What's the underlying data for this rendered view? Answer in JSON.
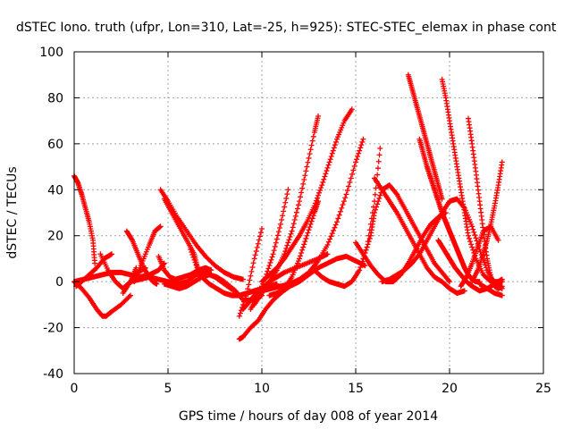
{
  "chart_data": {
    "type": "scatter",
    "title": "dSTEC Iono. truth (ufpr, Lon=310, Lat=-25, h=925): STEC-STEC_elemax in phase cont",
    "xlabel": "GPS time / hours of day 008 of year 2014",
    "ylabel": "dSTEC  / TECUs",
    "xlim": [
      0,
      25
    ],
    "ylim": [
      -40,
      100
    ],
    "xticks": [
      0,
      5,
      10,
      15,
      20,
      25
    ],
    "yticks": [
      -40,
      -20,
      0,
      20,
      40,
      60,
      80,
      100
    ],
    "grid": true,
    "grid_style": "dotted",
    "marker": "+",
    "color": "#ff0000",
    "series": [
      {
        "x": [
          0.0,
          0.2,
          0.4,
          0.6,
          0.8,
          1.0,
          1.1
        ],
        "y": [
          46,
          43,
          38,
          32,
          26,
          18,
          8
        ]
      },
      {
        "x": [
          0.0,
          0.4,
          0.8,
          1.2,
          1.5,
          1.7,
          2.0,
          2.5,
          3.0
        ],
        "y": [
          0,
          -3,
          -7,
          -12,
          -15,
          -15,
          -13,
          -10,
          -6
        ]
      },
      {
        "x": [
          0.0,
          0.5,
          1.0,
          1.5,
          2.0,
          2.5,
          3.0,
          3.5,
          4.0,
          4.5,
          4.8
        ],
        "y": [
          0,
          1,
          2,
          3,
          4,
          4,
          3,
          2,
          3,
          5,
          8
        ]
      },
      {
        "x": [
          0.1,
          0.4,
          0.8,
          1.2,
          1.6,
          2.0
        ],
        "y": [
          -2,
          0,
          3,
          6,
          10,
          12
        ]
      },
      {
        "x": [
          1.4,
          1.8,
          2.2,
          2.6,
          3.0,
          3.3
        ],
        "y": [
          12,
          5,
          0,
          -3,
          0,
          6
        ]
      },
      {
        "x": [
          2.8,
          3.1,
          3.4,
          3.7,
          4.0,
          4.2,
          4.4
        ],
        "y": [
          22,
          18,
          12,
          6,
          2,
          0,
          -1
        ]
      },
      {
        "x": [
          3.2,
          3.6,
          4.0,
          4.3,
          4.6
        ],
        "y": [
          0,
          8,
          16,
          22,
          24
        ]
      },
      {
        "x": [
          2.6,
          3.0,
          3.4,
          3.8
        ],
        "y": [
          -5,
          0,
          4,
          6
        ]
      },
      {
        "x": [
          4.5,
          4.8,
          5.1,
          5.4,
          5.8,
          6.2,
          6.6,
          7.0,
          7.3
        ],
        "y": [
          11,
          5,
          2,
          1,
          2,
          3,
          5,
          6,
          5
        ]
      },
      {
        "x": [
          4.6,
          5.0,
          5.5,
          6.0,
          6.5,
          7.0,
          7.5,
          8.0,
          8.5,
          9.0
        ],
        "y": [
          40,
          35,
          28,
          22,
          16,
          11,
          7,
          4,
          2,
          1
        ]
      },
      {
        "x": [
          4.8,
          5.2,
          5.6,
          6.0,
          6.4,
          6.6
        ],
        "y": [
          36,
          30,
          24,
          18,
          12,
          5
        ]
      },
      {
        "x": [
          6.2,
          6.6
        ],
        "y": [
          14,
          5
        ]
      },
      {
        "x": [
          4.8,
          5.2,
          5.6,
          6.0,
          6.4,
          6.8,
          7.2,
          7.6,
          8.0,
          8.6,
          9.0,
          9.5,
          10.0
        ],
        "y": [
          -1,
          -2,
          -3,
          -2,
          0,
          2,
          3,
          2,
          0,
          -4,
          -8,
          -8,
          -6
        ]
      },
      {
        "x": [
          3.0,
          3.5,
          4.0,
          4.5,
          5.0,
          5.5,
          6.0,
          6.5,
          7.0,
          7.5,
          8.0,
          8.5
        ],
        "y": [
          0,
          1,
          2,
          1,
          0,
          -1,
          0,
          3,
          4,
          2,
          -1,
          -4
        ]
      },
      {
        "x": [
          6.8,
          7.2,
          7.6,
          8.0,
          8.4,
          8.8,
          9.2,
          9.6,
          10.0,
          10.4,
          10.8
        ],
        "y": [
          2,
          -1,
          -3,
          -5,
          -6,
          -6,
          -5,
          -4,
          -3,
          -2,
          -1
        ]
      },
      {
        "x": [
          8.8,
          9.0,
          9.4,
          9.8,
          10.2,
          10.6,
          11.0,
          11.5,
          12.0,
          12.5,
          13.0,
          13.5,
          14.0,
          14.5,
          15.0,
          15.5
        ],
        "y": [
          -25,
          -24,
          -20,
          -17,
          -12,
          -8,
          -5,
          -2,
          0,
          3,
          6,
          8,
          10,
          11,
          9,
          7
        ]
      },
      {
        "x": [
          9.0,
          9.3,
          9.6,
          10.0,
          10.4,
          10.8,
          11.2,
          11.8,
          12.4,
          13.0,
          13.5
        ],
        "y": [
          -12,
          -9,
          -6,
          -3,
          0,
          2,
          4,
          6,
          8,
          10,
          12
        ]
      },
      {
        "x": [
          8.8,
          9.2,
          9.6,
          10.0
        ],
        "y": [
          -15,
          -5,
          10,
          23
        ]
      },
      {
        "x": [
          9.6,
          10.0,
          10.4,
          10.8,
          11.2,
          11.6,
          12.0,
          12.4,
          12.8,
          13.0
        ],
        "y": [
          -10,
          -5,
          0,
          5,
          12,
          22,
          35,
          50,
          65,
          72
        ]
      },
      {
        "x": [
          10.0,
          10.4,
          10.8,
          11.2,
          11.6,
          12.0,
          12.4,
          12.8,
          13.2,
          13.6,
          14.0,
          14.4,
          14.8
        ],
        "y": [
          0,
          3,
          6,
          10,
          15,
          20,
          26,
          33,
          42,
          52,
          62,
          70,
          75
        ]
      },
      {
        "x": [
          10.0,
          10.5,
          11.0,
          11.5,
          12.0,
          12.5,
          13.0,
          13.5,
          14.0,
          14.5,
          15.0,
          15.4
        ],
        "y": [
          -4,
          -3,
          -2,
          -1,
          1,
          4,
          9,
          16,
          26,
          38,
          52,
          62
        ]
      },
      {
        "x": [
          10.4,
          10.8,
          11.2,
          11.6,
          12.0,
          12.4,
          12.8,
          13.0
        ],
        "y": [
          -6,
          -5,
          -3,
          2,
          10,
          20,
          30,
          35
        ]
      },
      {
        "x": [
          9.4,
          9.8,
          10.2,
          10.6,
          11.0,
          11.4
        ],
        "y": [
          -12,
          -6,
          2,
          12,
          25,
          40
        ]
      },
      {
        "x": [
          12.8,
          13.2,
          13.6,
          14.0,
          14.4,
          14.8,
          15.2,
          15.6,
          16.0,
          16.3
        ],
        "y": [
          5,
          2,
          0,
          -1,
          -2,
          0,
          5,
          15,
          35,
          58
        ]
      },
      {
        "x": [
          15.0,
          15.4,
          15.8,
          16.2,
          16.6,
          17.0,
          17.4,
          17.8,
          18.2,
          18.6,
          19.0,
          19.4,
          19.8
        ],
        "y": [
          17,
          12,
          7,
          3,
          0,
          0,
          3,
          8,
          14,
          20,
          25,
          28,
          30
        ]
      },
      {
        "x": [
          15.4,
          15.8,
          16.0,
          16.4,
          16.8,
          17.2,
          17.6,
          18.0,
          18.4,
          18.8,
          19.2,
          19.6,
          20.0
        ],
        "y": [
          10,
          20,
          30,
          40,
          42,
          38,
          32,
          26,
          20,
          14,
          8,
          4,
          0
        ]
      },
      {
        "x": [
          16.0,
          16.4,
          16.8,
          17.2,
          17.6,
          18.0,
          18.4,
          18.8,
          19.2,
          19.6,
          20.0,
          20.4,
          20.8
        ],
        "y": [
          45,
          40,
          35,
          30,
          24,
          18,
          12,
          6,
          2,
          0,
          -3,
          -5,
          -4
        ]
      },
      {
        "x": [
          16.4,
          16.8,
          17.2,
          17.6,
          18.0,
          18.4,
          18.8,
          19.2,
          19.6,
          20.0,
          20.4,
          20.8,
          21.2,
          21.6,
          22.0,
          22.4,
          22.8
        ],
        "y": [
          0,
          1,
          3,
          5,
          8,
          12,
          18,
          24,
          30,
          35,
          36,
          32,
          24,
          14,
          5,
          -1,
          -3
        ]
      },
      {
        "x": [
          17.8,
          18.0,
          18.2,
          18.4,
          18.6,
          18.8,
          19.0,
          19.2,
          19.4,
          19.6
        ],
        "y": [
          90,
          84,
          78,
          72,
          66,
          60,
          54,
          48,
          42,
          36
        ]
      },
      {
        "x": [
          18.4,
          18.6,
          18.8,
          19.0,
          19.2,
          19.4,
          19.6,
          19.8,
          20.0,
          20.2,
          20.4,
          20.6,
          20.8,
          21.0,
          21.2,
          21.4,
          21.6
        ],
        "y": [
          62,
          56,
          50,
          45,
          40,
          35,
          30,
          26,
          22,
          18,
          14,
          10,
          6,
          3,
          1,
          0,
          0
        ]
      },
      {
        "x": [
          19.6,
          19.8,
          20.0,
          20.2,
          20.4,
          20.6,
          20.8,
          21.0,
          21.4,
          21.8,
          22.2,
          22.6,
          22.8
        ],
        "y": [
          88,
          80,
          70,
          60,
          50,
          40,
          30,
          20,
          10,
          3,
          0,
          0,
          1
        ]
      },
      {
        "x": [
          19.4,
          19.7,
          20.0,
          20.3,
          20.6,
          20.9,
          21.2,
          21.6,
          22.0,
          22.4,
          22.8
        ],
        "y": [
          18,
          14,
          10,
          6,
          3,
          0,
          -2,
          -4,
          -3,
          -1,
          0
        ]
      },
      {
        "x": [
          20.6,
          20.9,
          21.2,
          21.5,
          21.8,
          22.2,
          22.6
        ],
        "y": [
          -2,
          2,
          8,
          15,
          22,
          24,
          18
        ]
      },
      {
        "x": [
          21.0,
          21.2,
          21.4,
          21.6,
          21.8,
          22.0,
          22.2,
          22.4,
          22.6,
          22.8
        ],
        "y": [
          71,
          60,
          48,
          35,
          22,
          10,
          2,
          -2,
          -3,
          -2
        ]
      },
      {
        "x": [
          21.2,
          21.5,
          21.8,
          22.0,
          22.2,
          22.4,
          22.6,
          22.8
        ],
        "y": [
          0,
          5,
          12,
          18,
          25,
          33,
          42,
          52
        ]
      },
      {
        "x": [
          21.6,
          22.0,
          22.4,
          22.8
        ],
        "y": [
          -1,
          -3,
          -5,
          -6
        ]
      }
    ]
  }
}
